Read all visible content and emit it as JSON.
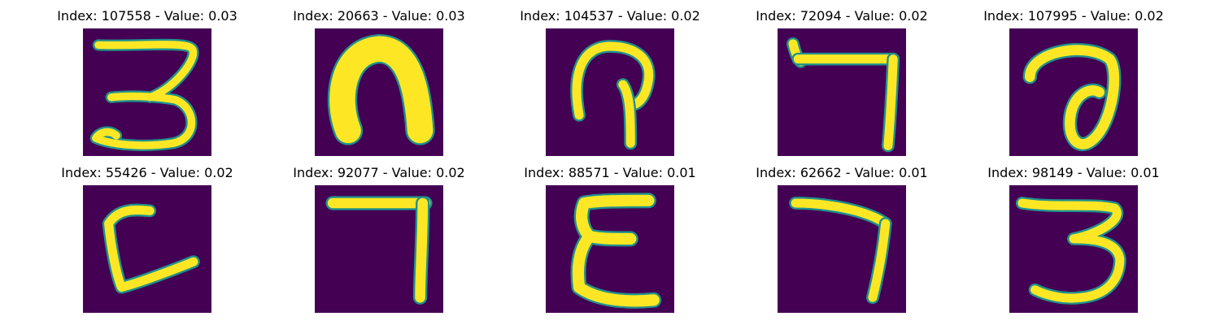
{
  "colors": {
    "background": "#440154",
    "mid": "#21918c",
    "stroke": "#fde725"
  },
  "samples": [
    {
      "title": "Index: 107558 - Value: 0.03",
      "glyph": "three-open"
    },
    {
      "title": "Index: 20663 - Value: 0.03",
      "glyph": "arch-thick"
    },
    {
      "title": "Index: 104537 - Value: 0.02",
      "glyph": "hook"
    },
    {
      "title": "Index: 72094 - Value: 0.02",
      "glyph": "seven-bent"
    },
    {
      "title": "Index: 107995 - Value: 0.02",
      "glyph": "loop"
    },
    {
      "title": "Index: 55426 - Value: 0.02",
      "glyph": "c-shape"
    },
    {
      "title": "Index: 92077 - Value: 0.02",
      "glyph": "seven-square"
    },
    {
      "title": "Index: 88571 - Value: 0.01",
      "glyph": "epsilon"
    },
    {
      "title": "Index: 62662 - Value: 0.01",
      "glyph": "seven-curve"
    },
    {
      "title": "Index: 98149 - Value: 0.01",
      "glyph": "three"
    }
  ]
}
